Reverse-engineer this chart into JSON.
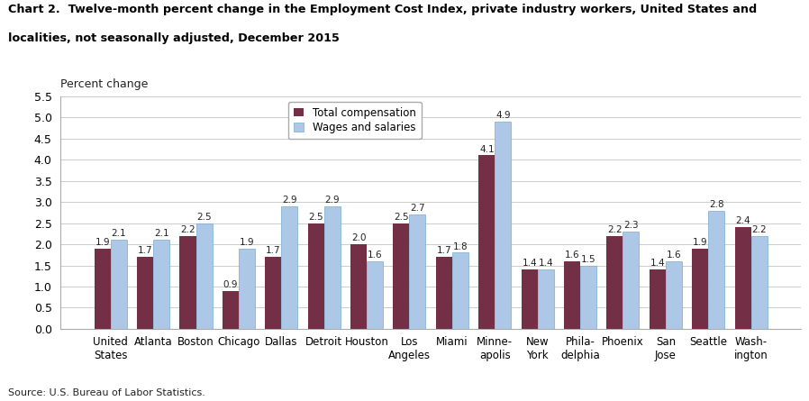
{
  "title_line1": "Chart 2.  Twelve-month percent change in the Employment Cost Index, private industry workers, United States and",
  "title_line2": "localities, not seasonally adjusted, December 2015",
  "ylabel": "Percent change",
  "source": "Source: U.S. Bureau of Labor Statistics.",
  "categories": [
    "United\nStates",
    "Atlanta",
    "Boston",
    "Chicago",
    "Dallas",
    "Detroit",
    "Houston",
    "Los\nAngeles",
    "Miami",
    "Minne-\napolis",
    "New\nYork",
    "Phila-\ndelphia",
    "Phoenix",
    "San\nJose",
    "Seattle",
    "Wash-\nington"
  ],
  "total_compensation": [
    1.9,
    1.7,
    2.2,
    0.9,
    1.7,
    2.5,
    2.0,
    2.5,
    1.7,
    4.1,
    1.4,
    1.6,
    2.2,
    1.4,
    1.9,
    2.4
  ],
  "wages_and_salaries": [
    2.1,
    2.1,
    2.5,
    1.9,
    2.9,
    2.9,
    1.6,
    2.7,
    1.8,
    4.9,
    1.4,
    1.5,
    2.3,
    1.6,
    2.8,
    2.2
  ],
  "color_total": "#722F45",
  "color_wages": "#ADC8E6",
  "color_wages_edge": "#7aaad0",
  "ylim": [
    0,
    5.5
  ],
  "yticks": [
    0.0,
    0.5,
    1.0,
    1.5,
    2.0,
    2.5,
    3.0,
    3.5,
    4.0,
    4.5,
    5.0,
    5.5
  ],
  "bar_width": 0.38,
  "label_total": "Total compensation",
  "label_wages": "Wages and salaries"
}
